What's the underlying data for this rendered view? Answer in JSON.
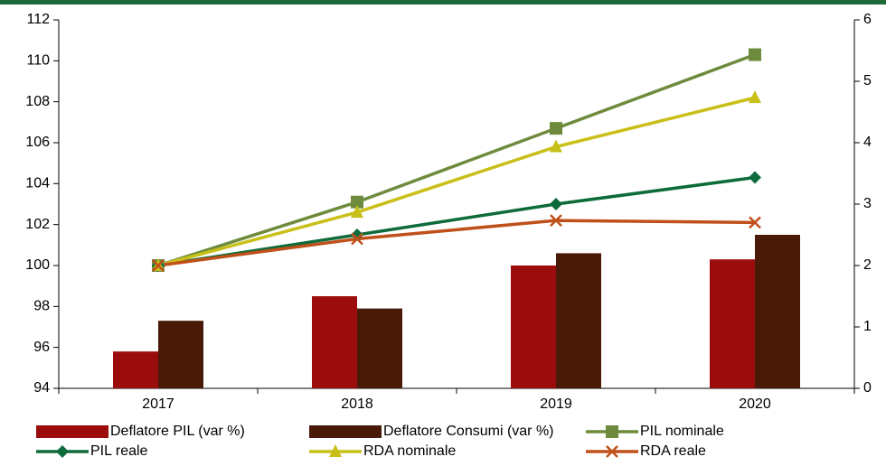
{
  "chart_data": {
    "type": "bar-line",
    "categories": [
      "2017",
      "2018",
      "2019",
      "2020"
    ],
    "series": [
      {
        "name": "Deflatore PIL (var %)",
        "kind": "bar",
        "axis": "y2",
        "color": "#9b0d0d",
        "values": [
          0.6,
          1.5,
          2.0,
          2.1
        ]
      },
      {
        "name": "Deflatore Consumi (var %)",
        "kind": "bar",
        "axis": "y2",
        "color": "#4a1a08",
        "values": [
          1.1,
          1.3,
          2.2,
          2.5
        ]
      },
      {
        "name": "PIL nominale",
        "kind": "line",
        "marker": "square",
        "color": "#6e8b3d",
        "values": [
          100,
          103.1,
          106.7,
          110.3
        ]
      },
      {
        "name": "PIL reale",
        "kind": "line",
        "marker": "diamond",
        "color": "#0e6b3a",
        "values": [
          100,
          101.5,
          103.0,
          104.3
        ]
      },
      {
        "name": "RDA nominale",
        "kind": "line",
        "marker": "triangle",
        "color": "#c8c018",
        "values": [
          100,
          102.6,
          105.8,
          108.2
        ]
      },
      {
        "name": "RDA reale",
        "kind": "line",
        "marker": "x",
        "color": "#c0501a",
        "values": [
          100,
          101.3,
          102.2,
          102.1
        ]
      }
    ],
    "ylim": [
      94,
      112
    ],
    "yticks": [
      94,
      96,
      98,
      100,
      102,
      104,
      106,
      108,
      110,
      112
    ],
    "y2lim": [
      0,
      6
    ],
    "y2ticks": [
      0,
      1,
      2,
      3,
      4,
      5,
      6
    ]
  }
}
